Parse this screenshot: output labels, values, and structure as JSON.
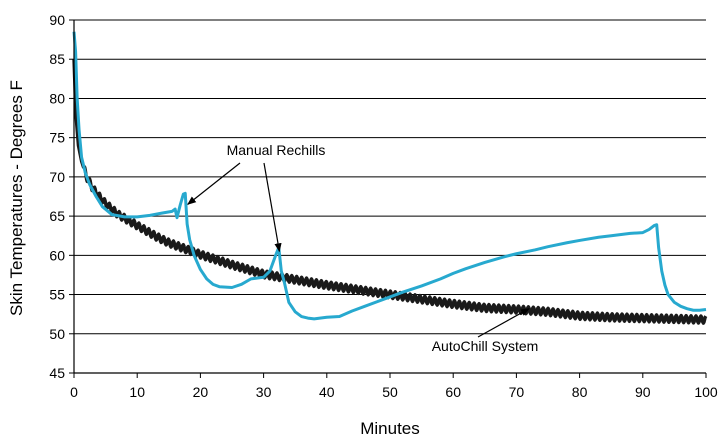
{
  "chart_data": {
    "type": "line",
    "title": "",
    "xlabel": "Minutes",
    "ylabel": "Skin Temperatures - Degrees F",
    "xlim": [
      0,
      100
    ],
    "ylim": [
      45,
      90
    ],
    "x_ticks": [
      0,
      10,
      20,
      30,
      40,
      50,
      60,
      70,
      80,
      90,
      100
    ],
    "y_ticks": [
      45,
      50,
      55,
      60,
      65,
      70,
      75,
      80,
      85,
      90
    ],
    "grid": "horizontal",
    "series": [
      {
        "key": "autochill",
        "color": "#1a1a1a",
        "oscillating": true,
        "points": [
          [
            0,
            85
          ],
          [
            0.3,
            78
          ],
          [
            0.7,
            74
          ],
          [
            1.2,
            72
          ],
          [
            2,
            70
          ],
          [
            3,
            68.5
          ],
          [
            4,
            67.5
          ],
          [
            5,
            66.6
          ],
          [
            7,
            65.2
          ],
          [
            10,
            63.8
          ],
          [
            13,
            62.4
          ],
          [
            15,
            61.6
          ],
          [
            18,
            60.7
          ],
          [
            20,
            60.1
          ],
          [
            25,
            58.8
          ],
          [
            30,
            57.6
          ],
          [
            35,
            56.9
          ],
          [
            40,
            56.2
          ],
          [
            45,
            55.6
          ],
          [
            50,
            55
          ],
          [
            55,
            54.4
          ],
          [
            60,
            53.8
          ],
          [
            65,
            53.3
          ],
          [
            70,
            53.1
          ],
          [
            75,
            52.8
          ],
          [
            80,
            52.3
          ],
          [
            85,
            52.1
          ],
          [
            90,
            52
          ],
          [
            95,
            51.9
          ],
          [
            100,
            51.8
          ]
        ]
      },
      {
        "key": "manual",
        "color": "#27a9cf",
        "oscillating": false,
        "points": [
          [
            0,
            88.5
          ],
          [
            0.25,
            86
          ],
          [
            0.5,
            80
          ],
          [
            0.8,
            76
          ],
          [
            1.2,
            72.5
          ],
          [
            1.8,
            70.5
          ],
          [
            2.5,
            69
          ],
          [
            3.5,
            67.5
          ],
          [
            4.5,
            66.2
          ],
          [
            6,
            65.2
          ],
          [
            8,
            64.9
          ],
          [
            10,
            64.9
          ],
          [
            12,
            65.1
          ],
          [
            14,
            65.4
          ],
          [
            15.5,
            65.6
          ],
          [
            16,
            65.9
          ],
          [
            16.3,
            64.8
          ],
          [
            16.8,
            66.4
          ],
          [
            17.3,
            67.8
          ],
          [
            17.6,
            67.9
          ],
          [
            17.9,
            64
          ],
          [
            18.3,
            62
          ],
          [
            19,
            60
          ],
          [
            20,
            58.2
          ],
          [
            21,
            57
          ],
          [
            22,
            56.3
          ],
          [
            23,
            56
          ],
          [
            25,
            55.9
          ],
          [
            26.5,
            56.3
          ],
          [
            28,
            57
          ],
          [
            30,
            57.2
          ],
          [
            31,
            58
          ],
          [
            32,
            60.2
          ],
          [
            32.4,
            61
          ],
          [
            32.8,
            58
          ],
          [
            33.3,
            56.5
          ],
          [
            34,
            54
          ],
          [
            35,
            52.8
          ],
          [
            36,
            52.2
          ],
          [
            37,
            52
          ],
          [
            38,
            51.9
          ],
          [
            40,
            52.1
          ],
          [
            42,
            52.2
          ],
          [
            44,
            52.9
          ],
          [
            46,
            53.5
          ],
          [
            48,
            54.1
          ],
          [
            50,
            54.7
          ],
          [
            52,
            55.3
          ],
          [
            55,
            56.1
          ],
          [
            58,
            57
          ],
          [
            60,
            57.7
          ],
          [
            62,
            58.3
          ],
          [
            65,
            59.1
          ],
          [
            68,
            59.8
          ],
          [
            70,
            60.2
          ],
          [
            73,
            60.7
          ],
          [
            75,
            61.1
          ],
          [
            78,
            61.6
          ],
          [
            80,
            61.9
          ],
          [
            83,
            62.3
          ],
          [
            85,
            62.5
          ],
          [
            88,
            62.8
          ],
          [
            90,
            62.9
          ],
          [
            91,
            63.3
          ],
          [
            91.8,
            63.8
          ],
          [
            92.2,
            63.9
          ],
          [
            92.5,
            61
          ],
          [
            93,
            58
          ],
          [
            93.5,
            56.2
          ],
          [
            94,
            55
          ],
          [
            95,
            54
          ],
          [
            96,
            53.5
          ],
          [
            97,
            53.2
          ],
          [
            98,
            53
          ],
          [
            99,
            53
          ],
          [
            100,
            53.1
          ]
        ]
      }
    ],
    "annotations": [
      {
        "text": "Manual Rechills",
        "arrows_to": [
          [
            18,
            66.5
          ],
          [
            32.5,
            60.5
          ]
        ]
      },
      {
        "text": "AutoChill System",
        "arrows_to": [
          [
            72,
            53.2
          ]
        ]
      }
    ]
  }
}
